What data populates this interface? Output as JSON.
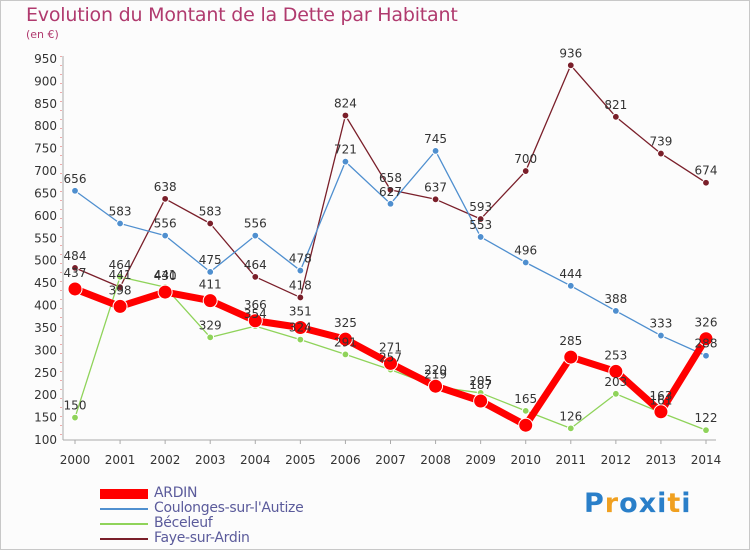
{
  "title": "Evolution du Montant de la Dette par Habitant",
  "unit_label": "(en €)",
  "logo": "Proxiti",
  "chart_data": {
    "type": "line",
    "title": "Evolution du Montant de la Dette par Habitant",
    "ylabel": "(en €)",
    "xlabel": "",
    "x": [
      "2000",
      "2001",
      "2002",
      "2003",
      "2004",
      "2005",
      "2006",
      "2007",
      "2008",
      "2009",
      "2010",
      "2011",
      "2012",
      "2013",
      "2014"
    ],
    "ylim": [
      100,
      950
    ],
    "yticks": [
      100,
      150,
      200,
      250,
      300,
      350,
      400,
      450,
      500,
      550,
      600,
      650,
      700,
      750,
      800,
      850,
      900,
      950
    ],
    "grid": false,
    "legend_position": "bottom-left",
    "series": [
      {
        "name": "ARDIN",
        "color": "#ff0000",
        "values": [
          437,
          398,
          430,
          411,
          366,
          351,
          325,
          271,
          220,
          187,
          133,
          285,
          253,
          163,
          326
        ],
        "labels": [
          "437",
          "398",
          "430",
          "411",
          "366",
          "351",
          "325",
          "271",
          "220",
          "187",
          "",
          "285",
          "253",
          "163",
          "326"
        ]
      },
      {
        "name": "Coulonges-sur-l'Autize",
        "color": "#4f8fcf",
        "values": [
          656,
          583,
          556,
          475,
          556,
          478,
          721,
          627,
          745,
          553,
          496,
          444,
          388,
          333,
          288
        ],
        "labels": [
          "656",
          "583",
          "556",
          "475",
          "556",
          "478",
          "721",
          "627",
          "745",
          "553",
          "496",
          "444",
          "388",
          "333",
          "288"
        ]
      },
      {
        "name": "Béceleuf",
        "color": "#8fd35a",
        "values": [
          150,
          464,
          441,
          329,
          354,
          324,
          291,
          257,
          219,
          205,
          165,
          126,
          203,
          161,
          122
        ],
        "labels": [
          "150",
          "464",
          "441",
          "329",
          "354",
          "324",
          "291",
          "257",
          "219",
          "205",
          "165",
          "126",
          "203",
          "161",
          "122"
        ]
      },
      {
        "name": "Faye-sur-Ardin",
        "color": "#7a1f2a",
        "values": [
          484,
          441,
          638,
          583,
          464,
          418,
          824,
          658,
          637,
          593,
          700,
          936,
          821,
          739,
          674
        ],
        "labels": [
          "484",
          "441",
          "638",
          "583",
          "464",
          "418",
          "824",
          "658",
          "637",
          "593",
          "700",
          "936",
          "821",
          "739",
          "674"
        ]
      }
    ]
  }
}
